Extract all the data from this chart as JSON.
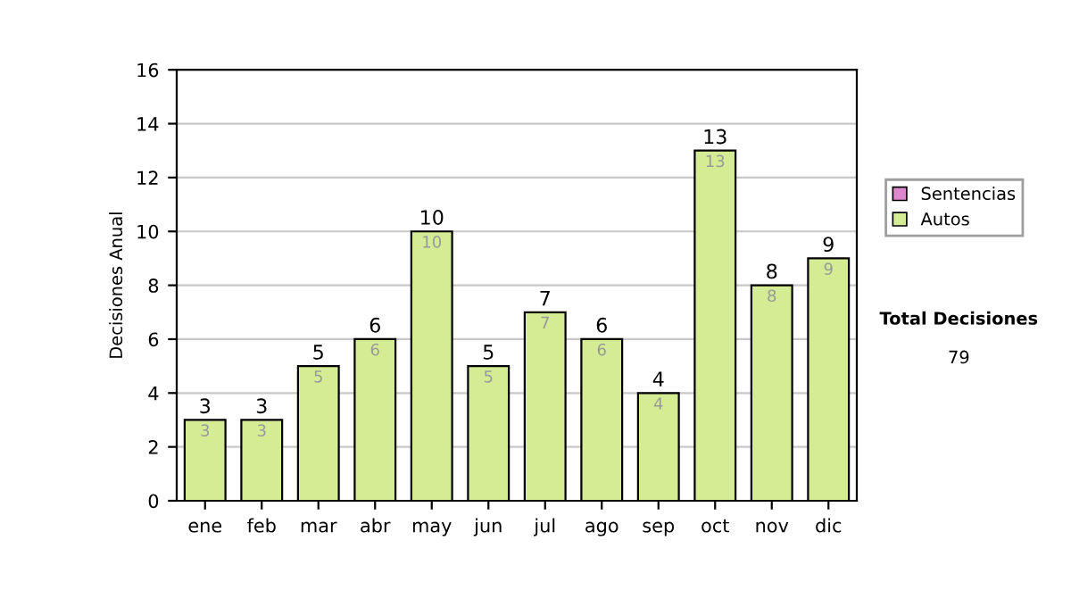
{
  "chart_data": {
    "type": "bar",
    "ylabel": "Decisiones Anual",
    "categories": [
      "ene",
      "feb",
      "mar",
      "abr",
      "may",
      "jun",
      "jul",
      "ago",
      "sep",
      "oct",
      "nov",
      "dic"
    ],
    "stacked": true,
    "series": [
      {
        "name": "Sentencias",
        "color": "#dd88cc",
        "values": [
          0,
          0,
          0,
          0,
          0,
          0,
          0,
          0,
          0,
          0,
          0,
          0
        ]
      },
      {
        "name": "Autos",
        "color": "#d4ec94",
        "values": [
          3,
          3,
          5,
          6,
          10,
          5,
          7,
          6,
          4,
          13,
          8,
          9
        ],
        "value_labels": [
          "3",
          "3",
          "5",
          "6",
          "10",
          "5",
          "7",
          "6",
          "4",
          "13",
          "8",
          "9"
        ]
      }
    ],
    "totals": [
      "3",
      "3",
      "5",
      "6",
      "10",
      "5",
      "7",
      "6",
      "4",
      "13",
      "8",
      "9"
    ],
    "ylim": [
      0,
      16
    ],
    "yticks": [
      0,
      2,
      4,
      6,
      8,
      10,
      12,
      14,
      16
    ],
    "grid": "y",
    "legend": "right",
    "annotations": [
      "Total Decisiones",
      "79"
    ]
  }
}
